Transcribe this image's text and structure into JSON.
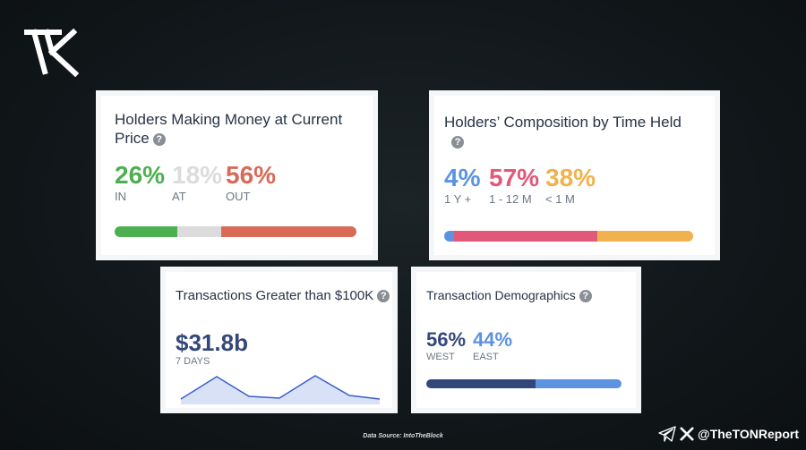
{
  "colors": {
    "in": "#4caf50",
    "at": "#dcdcdc",
    "out": "#d86a57",
    "y1": "#5b93e0",
    "m1_12": "#e0597a",
    "lt1m": "#f0b24e",
    "west": "#33477a",
    "east": "#5b93e0",
    "sparkline": "#3a5fcd"
  },
  "cards": {
    "holders_money": {
      "title": "Holders Making Money at Current Price",
      "stats": [
        {
          "value": "26%",
          "label": "IN",
          "pct": 26
        },
        {
          "value": "18%",
          "label": "AT",
          "pct": 18
        },
        {
          "value": "56%",
          "label": "OUT",
          "pct": 56
        }
      ]
    },
    "composition": {
      "title": "Holders’ Composition by Time Held",
      "stats": [
        {
          "value": "4%",
          "label": "1 Y +",
          "pct": 4
        },
        {
          "value": "57%",
          "label": "1 - 12 M",
          "pct": 57
        },
        {
          "value": "38%",
          "label": "< 1 M",
          "pct": 38
        }
      ]
    },
    "large_tx": {
      "title": "Transactions Greater than $100K",
      "value": "$31.8b",
      "period": "7 DAYS"
    },
    "demographics": {
      "title": "Transaction Demographics",
      "stats": [
        {
          "value": "56%",
          "label": "WEST",
          "pct": 56
        },
        {
          "value": "44%",
          "label": "EAST",
          "pct": 44
        }
      ]
    }
  },
  "help_glyph": "?",
  "footer": {
    "source": "Data Source: IntoTheBlock",
    "handle": "@TheTONReport"
  },
  "icons": [
    "tk-logo-icon",
    "help-icon",
    "telegram-icon",
    "x-logo-icon"
  ]
}
